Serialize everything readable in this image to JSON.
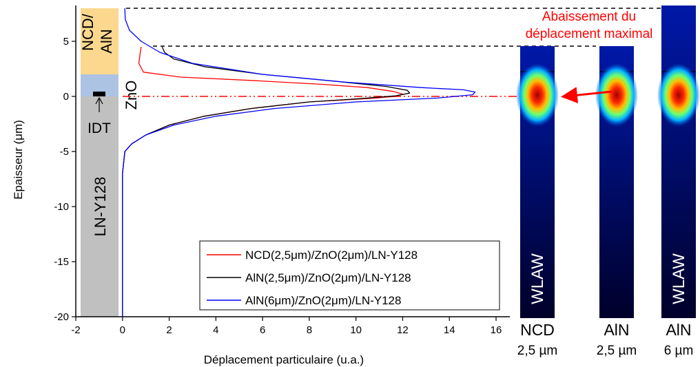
{
  "chart_data": {
    "type": "line",
    "xlabel": "Déplacement particulaire (u.a.)",
    "ylabel": "Epaisseur (μm)",
    "xlim": [
      -2,
      16
    ],
    "ylim": [
      -20,
      8
    ],
    "x_ticks": [
      "-2",
      "0",
      "2",
      "4",
      "6",
      "8",
      "10",
      "12",
      "14",
      "16"
    ],
    "y_ticks": [
      "5",
      "0",
      "-5",
      "-10",
      "-15",
      "-20"
    ],
    "layers": [
      {
        "name": "NCD/AlN",
        "y_range": [
          2,
          8
        ],
        "color": "#fbd88e"
      },
      {
        "name": "ZnO",
        "y_range": [
          0,
          2
        ],
        "color": "#adc3e3"
      },
      {
        "name": "LN-Y128",
        "y_range": [
          -20,
          0
        ],
        "color": "#c0c0c0"
      }
    ],
    "idt_label": "IDT",
    "annotation": "Abaissement du déplacement maximal",
    "legend_position": "bottom-right",
    "series": [
      {
        "name": "NCD(2,5μm)/ZnO(2μm)/LN-Y128",
        "color": "#ff0000",
        "points": [
          [
            0.8,
            4.5
          ],
          [
            0.75,
            3.8
          ],
          [
            0.7,
            3.0
          ],
          [
            0.9,
            2.2
          ],
          [
            2.5,
            1.75
          ],
          [
            5.5,
            1.45
          ],
          [
            8.5,
            1.1
          ],
          [
            10.5,
            0.8
          ],
          [
            11.6,
            0.45
          ],
          [
            12.0,
            0.2
          ],
          [
            11.7,
            0.0
          ],
          [
            10.5,
            -0.2
          ],
          [
            8.0,
            -0.5
          ],
          [
            5.5,
            -1.1
          ],
          [
            3.5,
            -1.8
          ],
          [
            2.0,
            -2.6
          ],
          [
            1.0,
            -3.5
          ],
          [
            0.4,
            -4.3
          ],
          [
            0.1,
            -5.0
          ],
          [
            0.0,
            -7.0
          ],
          [
            0.0,
            -20.0
          ]
        ]
      },
      {
        "name": "AlN(2,5μm)/ZnO(2μm)/LN-Y128",
        "color": "#000000",
        "points": [
          [
            1.7,
            4.5
          ],
          [
            1.8,
            4.0
          ],
          [
            2.2,
            3.4
          ],
          [
            3.5,
            2.7
          ],
          [
            6.0,
            2.0
          ],
          [
            9.0,
            1.4
          ],
          [
            11.3,
            0.9
          ],
          [
            12.2,
            0.55
          ],
          [
            12.3,
            0.3
          ],
          [
            11.7,
            0.05
          ],
          [
            10.2,
            -0.2
          ],
          [
            8.0,
            -0.5
          ],
          [
            5.5,
            -1.1
          ],
          [
            3.5,
            -1.8
          ],
          [
            2.0,
            -2.6
          ],
          [
            1.0,
            -3.5
          ],
          [
            0.4,
            -4.3
          ],
          [
            0.1,
            -5.0
          ],
          [
            0.0,
            -7.0
          ],
          [
            0.0,
            -20.0
          ]
        ]
      },
      {
        "name": "AlN(6μm)/ZnO(2μm)/LN-Y128",
        "color": "#0000ff",
        "points": [
          [
            0.1,
            8.0
          ],
          [
            0.12,
            7.0
          ],
          [
            0.3,
            6.0
          ],
          [
            0.8,
            5.0
          ],
          [
            1.6,
            4.0
          ],
          [
            3.0,
            3.0
          ],
          [
            6.0,
            2.0
          ],
          [
            9.5,
            1.3
          ],
          [
            12.8,
            0.8
          ],
          [
            14.6,
            0.6
          ],
          [
            15.1,
            0.4
          ],
          [
            15.0,
            0.15
          ],
          [
            13.5,
            -0.15
          ],
          [
            10.0,
            -0.5
          ],
          [
            6.5,
            -1.1
          ],
          [
            4.0,
            -1.8
          ],
          [
            2.2,
            -2.6
          ],
          [
            1.0,
            -3.5
          ],
          [
            0.4,
            -4.3
          ],
          [
            0.1,
            -5.0
          ],
          [
            0.0,
            -7.0
          ],
          [
            0.0,
            -20.0
          ]
        ]
      }
    ]
  },
  "panels": [
    {
      "label": "WLAW",
      "material": "NCD",
      "thickness": "2,5 µm"
    },
    {
      "label": "",
      "material": "AlN",
      "thickness": "2,5 µm"
    },
    {
      "label": "WLAW",
      "material": "AlN",
      "thickness": "6 µm"
    }
  ]
}
